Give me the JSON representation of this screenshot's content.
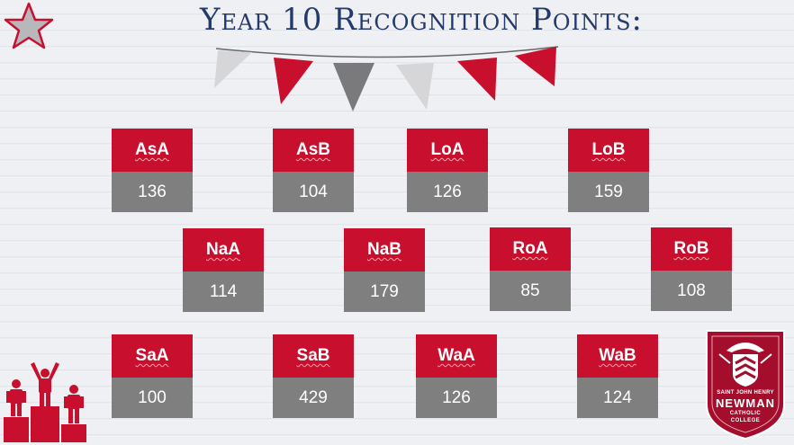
{
  "slide": {
    "title": "Year 10 Recognition Points:",
    "colors": {
      "accent": "#c8102e",
      "value_bg": "#7f7f7f",
      "title": "#243a6b"
    },
    "houses": [
      {
        "name": "AsA",
        "points": "136"
      },
      {
        "name": "AsB",
        "points": "104"
      },
      {
        "name": "LoA",
        "points": "126"
      },
      {
        "name": "LoB",
        "points": "159"
      },
      {
        "name": "NaA",
        "points": "114"
      },
      {
        "name": "NaB",
        "points": "179"
      },
      {
        "name": "RoA",
        "points": "85"
      },
      {
        "name": "RoB",
        "points": "108"
      },
      {
        "name": "SaA",
        "points": "100"
      },
      {
        "name": "SaB",
        "points": "429"
      },
      {
        "name": "WaA",
        "points": "126"
      },
      {
        "name": "WaB",
        "points": "124"
      }
    ],
    "logo": {
      "line1": "SAINT JOHN HENRY",
      "line2": "NEWMAN",
      "line3": "CATHOLIC",
      "line4": "COLLEGE"
    },
    "icons": [
      "star-icon",
      "bunting-decoration",
      "podium-icon",
      "school-crest-logo"
    ]
  }
}
